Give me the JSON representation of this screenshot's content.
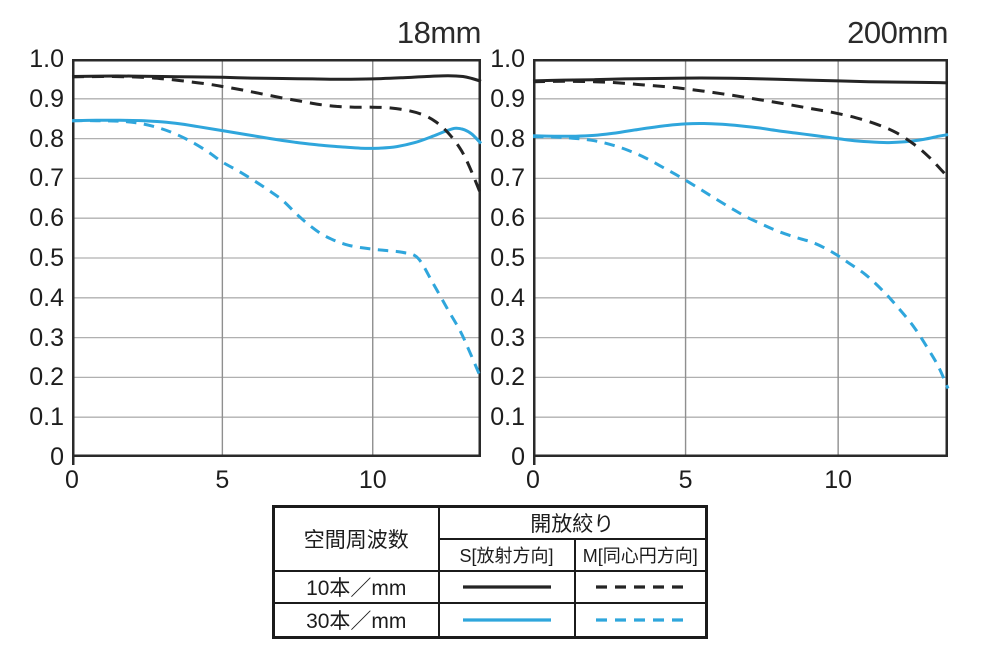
{
  "page": {
    "background": "#ffffff"
  },
  "colors": {
    "black": "#242424",
    "blue": "#2fa6dc",
    "grid_h": "#b0b0b0",
    "grid_v": "#8f8f8f",
    "frame": "#2a2a2a",
    "text": "#1d1d1d"
  },
  "legend_table": {
    "spatial_frequency_header": "空間周波数",
    "aperture_header": "開放絞り",
    "sagittal_header": "S[放射方向]",
    "meridional_header": "M[同心円方向]",
    "row_10": "10本／mm",
    "row_30": "30本／mm"
  },
  "chart_data": [
    {
      "type": "line",
      "title": "18mm",
      "xlim": [
        0,
        13.6
      ],
      "ylim": [
        0,
        1.0
      ],
      "xticks": [
        0,
        5,
        10
      ],
      "ytick_labels": [
        "1.0",
        "0.9",
        "0.8",
        "0.7",
        "0.6",
        "0.5",
        "0.4",
        "0.3",
        "0.2",
        "0.1",
        "0"
      ],
      "grid": true,
      "series": [
        {
          "id": "s30",
          "name": "30本/mm S(放射方向)",
          "color": "blue",
          "style": "solid",
          "points": [
            [
              0,
              0.845
            ],
            [
              0.8,
              0.846
            ],
            [
              1.6,
              0.846
            ],
            [
              2.4,
              0.845
            ],
            [
              3,
              0.842
            ],
            [
              3.6,
              0.837
            ],
            [
              4.2,
              0.83
            ],
            [
              5,
              0.82
            ],
            [
              5.8,
              0.81
            ],
            [
              6.6,
              0.8
            ],
            [
              7.4,
              0.791
            ],
            [
              8.2,
              0.784
            ],
            [
              9,
              0.779
            ],
            [
              9.6,
              0.776
            ],
            [
              10.2,
              0.776
            ],
            [
              10.8,
              0.78
            ],
            [
              11.4,
              0.79
            ],
            [
              12,
              0.806
            ],
            [
              12.4,
              0.818
            ],
            [
              12.75,
              0.826
            ],
            [
              13.05,
              0.822
            ],
            [
              13.3,
              0.811
            ],
            [
              13.6,
              0.788
            ]
          ]
        },
        {
          "id": "m30",
          "name": "30本/mm M(同心円方向)",
          "color": "blue",
          "style": "dashed",
          "points": [
            [
              0,
              0.845
            ],
            [
              0.8,
              0.845
            ],
            [
              1.5,
              0.844
            ],
            [
              2.1,
              0.84
            ],
            [
              2.7,
              0.831
            ],
            [
              3.3,
              0.816
            ],
            [
              3.9,
              0.795
            ],
            [
              4.5,
              0.768
            ],
            [
              5,
              0.741
            ],
            [
              5.5,
              0.72
            ],
            [
              6,
              0.697
            ],
            [
              6.5,
              0.672
            ],
            [
              7,
              0.645
            ],
            [
              7.6,
              0.601
            ],
            [
              8.2,
              0.565
            ],
            [
              8.7,
              0.545
            ],
            [
              9.2,
              0.532
            ],
            [
              9.8,
              0.524
            ],
            [
              10.4,
              0.519
            ],
            [
              11,
              0.514
            ],
            [
              11.5,
              0.5
            ],
            [
              12,
              0.437
            ],
            [
              12.5,
              0.37
            ],
            [
              12.9,
              0.318
            ],
            [
              13.2,
              0.268
            ],
            [
              13.6,
              0.198
            ]
          ]
        },
        {
          "id": "s10",
          "name": "10本/mm S(放射方向)",
          "color": "black",
          "style": "solid",
          "points": [
            [
              0,
              0.956
            ],
            [
              1,
              0.957
            ],
            [
              2,
              0.957
            ],
            [
              3,
              0.956
            ],
            [
              4,
              0.955
            ],
            [
              5,
              0.954
            ],
            [
              6,
              0.952
            ],
            [
              7,
              0.951
            ],
            [
              8,
              0.95
            ],
            [
              9,
              0.949
            ],
            [
              10,
              0.95
            ],
            [
              11,
              0.953
            ],
            [
              11.8,
              0.956
            ],
            [
              12.5,
              0.958
            ],
            [
              13,
              0.956
            ],
            [
              13.3,
              0.951
            ],
            [
              13.6,
              0.944
            ]
          ]
        },
        {
          "id": "m10",
          "name": "10本/mm M(同心円方向)",
          "color": "black",
          "style": "dashed",
          "points": [
            [
              0,
              0.955
            ],
            [
              1,
              0.956
            ],
            [
              2,
              0.955
            ],
            [
              2.6,
              0.953
            ],
            [
              3.2,
              0.949
            ],
            [
              4,
              0.942
            ],
            [
              4.6,
              0.936
            ],
            [
              5,
              0.931
            ],
            [
              5.6,
              0.923
            ],
            [
              6.2,
              0.914
            ],
            [
              7,
              0.902
            ],
            [
              7.6,
              0.894
            ],
            [
              8.2,
              0.886
            ],
            [
              8.8,
              0.881
            ],
            [
              9.4,
              0.879
            ],
            [
              10,
              0.879
            ],
            [
              10.6,
              0.877
            ],
            [
              11.2,
              0.87
            ],
            [
              11.7,
              0.859
            ],
            [
              12.1,
              0.842
            ],
            [
              12.5,
              0.815
            ],
            [
              12.9,
              0.776
            ],
            [
              13.2,
              0.732
            ],
            [
              13.6,
              0.659
            ]
          ]
        }
      ]
    },
    {
      "type": "line",
      "title": "200mm",
      "xlim": [
        0,
        13.6
      ],
      "ylim": [
        0,
        1.0
      ],
      "xticks": [
        0,
        5,
        10
      ],
      "ytick_labels": [
        "1.0",
        "0.9",
        "0.8",
        "0.7",
        "0.6",
        "0.5",
        "0.4",
        "0.3",
        "0.2",
        "0.1",
        "0"
      ],
      "grid": true,
      "series": [
        {
          "id": "s30",
          "name": "30本/mm S(放射方向)",
          "color": "blue",
          "style": "solid",
          "points": [
            [
              0,
              0.807
            ],
            [
              0.7,
              0.806
            ],
            [
              1.4,
              0.806
            ],
            [
              2,
              0.808
            ],
            [
              2.6,
              0.813
            ],
            [
              3.2,
              0.82
            ],
            [
              3.8,
              0.827
            ],
            [
              4.4,
              0.833
            ],
            [
              5,
              0.837
            ],
            [
              5.6,
              0.838
            ],
            [
              6.2,
              0.836
            ],
            [
              6.8,
              0.832
            ],
            [
              7.4,
              0.827
            ],
            [
              8,
              0.82
            ],
            [
              8.6,
              0.814
            ],
            [
              9.2,
              0.808
            ],
            [
              9.8,
              0.802
            ],
            [
              10.4,
              0.796
            ],
            [
              11,
              0.792
            ],
            [
              11.6,
              0.79
            ],
            [
              12.2,
              0.792
            ],
            [
              12.8,
              0.798
            ],
            [
              13.3,
              0.806
            ],
            [
              13.6,
              0.81
            ]
          ]
        },
        {
          "id": "m30",
          "name": "30本/mm M(同心円方向)",
          "color": "blue",
          "style": "dashed",
          "points": [
            [
              0,
              0.805
            ],
            [
              0.7,
              0.804
            ],
            [
              1.3,
              0.801
            ],
            [
              1.9,
              0.796
            ],
            [
              2.5,
              0.786
            ],
            [
              3.1,
              0.771
            ],
            [
              3.7,
              0.751
            ],
            [
              4.3,
              0.726
            ],
            [
              4.9,
              0.7
            ],
            [
              5.5,
              0.672
            ],
            [
              6,
              0.648
            ],
            [
              6.5,
              0.625
            ],
            [
              7,
              0.603
            ],
            [
              7.5,
              0.585
            ],
            [
              8,
              0.568
            ],
            [
              8.6,
              0.552
            ],
            [
              9.2,
              0.538
            ],
            [
              9.8,
              0.515
            ],
            [
              10.3,
              0.49
            ],
            [
              10.9,
              0.458
            ],
            [
              11.5,
              0.415
            ],
            [
              12,
              0.372
            ],
            [
              12.5,
              0.325
            ],
            [
              13,
              0.265
            ],
            [
              13.3,
              0.225
            ],
            [
              13.6,
              0.172
            ]
          ]
        },
        {
          "id": "s10",
          "name": "10本/mm S(放射方向)",
          "color": "black",
          "style": "solid",
          "points": [
            [
              0,
              0.945
            ],
            [
              1,
              0.947
            ],
            [
              2,
              0.948
            ],
            [
              3,
              0.95
            ],
            [
              4,
              0.951
            ],
            [
              5,
              0.952
            ],
            [
              6,
              0.952
            ],
            [
              7,
              0.951
            ],
            [
              8,
              0.949
            ],
            [
              9,
              0.947
            ],
            [
              10,
              0.945
            ],
            [
              11,
              0.943
            ],
            [
              12,
              0.942
            ],
            [
              13,
              0.941
            ],
            [
              13.6,
              0.94
            ]
          ]
        },
        {
          "id": "m10",
          "name": "10本/mm M(同心円方向)",
          "color": "black",
          "style": "dashed",
          "points": [
            [
              0,
              0.943
            ],
            [
              1,
              0.944
            ],
            [
              2,
              0.943
            ],
            [
              2.8,
              0.94
            ],
            [
              3.6,
              0.935
            ],
            [
              4.4,
              0.93
            ],
            [
              5,
              0.925
            ],
            [
              5.8,
              0.917
            ],
            [
              6.6,
              0.908
            ],
            [
              7.4,
              0.898
            ],
            [
              8.2,
              0.888
            ],
            [
              9,
              0.877
            ],
            [
              9.8,
              0.866
            ],
            [
              10.6,
              0.852
            ],
            [
              11.3,
              0.835
            ],
            [
              11.9,
              0.815
            ],
            [
              12.5,
              0.785
            ],
            [
              13,
              0.752
            ],
            [
              13.6,
              0.703
            ]
          ]
        }
      ]
    }
  ]
}
